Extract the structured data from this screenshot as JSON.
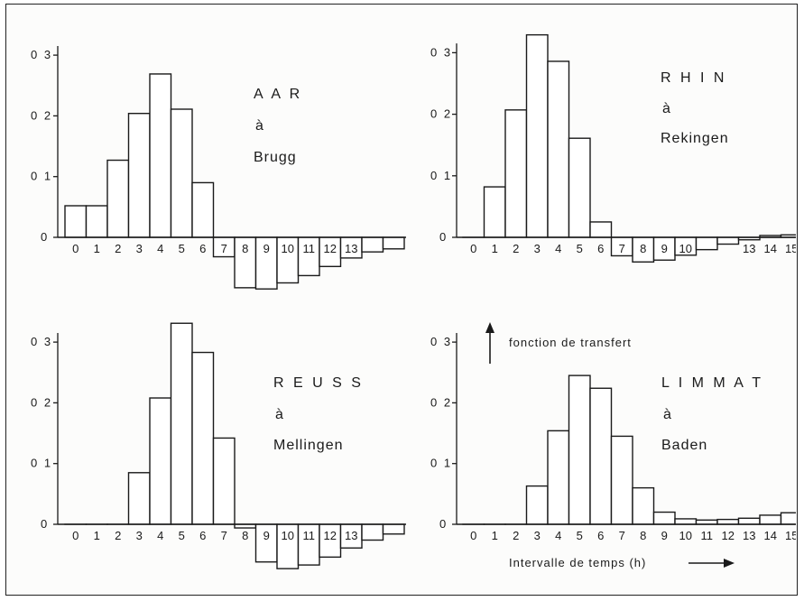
{
  "chart_data": [
    {
      "type": "bar",
      "title": "A A R",
      "subtitle": [
        "à",
        "Brugg"
      ],
      "xlabel": "",
      "ylabel": "",
      "categories": [
        "0",
        "1",
        "2",
        "3",
        "4",
        "5",
        "6",
        "7",
        "8",
        "9",
        "10",
        "11",
        "12",
        "13",
        "14",
        "15"
      ],
      "x_tick_labels": [
        "0",
        "1",
        "2",
        "3",
        "4",
        "5",
        "6",
        "7",
        "8",
        "9",
        "10",
        "11",
        "12",
        "13",
        "",
        ""
      ],
      "values": [
        0.052,
        0.052,
        0.127,
        0.204,
        0.269,
        0.211,
        0.09,
        -0.032,
        -0.083,
        -0.085,
        -0.075,
        -0.063,
        -0.048,
        -0.034,
        -0.024,
        -0.019
      ],
      "y_ticks": [
        "0",
        "0 1",
        "0 2",
        "0 3"
      ],
      "ylim": [
        -0.09,
        0.31
      ],
      "grid": false
    },
    {
      "type": "bar",
      "title": "R H I N",
      "subtitle": [
        "à",
        "Rekingen"
      ],
      "xlabel": "",
      "ylabel": "",
      "categories": [
        "0",
        "1",
        "2",
        "3",
        "4",
        "5",
        "6",
        "7",
        "8",
        "9",
        "10",
        "11",
        "12",
        "13",
        "14",
        "15"
      ],
      "x_tick_labels": [
        "0",
        "1",
        "2",
        "3",
        "4",
        "5",
        "6",
        "7",
        "8",
        "9",
        "10",
        "",
        "",
        "13",
        "14",
        "15"
      ],
      "values": [
        0.0,
        0.082,
        0.207,
        0.329,
        0.286,
        0.161,
        0.025,
        -0.03,
        -0.04,
        -0.037,
        -0.029,
        -0.02,
        -0.011,
        -0.004,
        0.003,
        0.004
      ],
      "y_ticks": [
        "0",
        "0 1",
        "0 2",
        "0 3"
      ],
      "ylim": [
        -0.05,
        0.34
      ],
      "grid": false
    },
    {
      "type": "bar",
      "title": "R E U S S",
      "subtitle": [
        "à",
        "Mellingen"
      ],
      "xlabel": "",
      "ylabel": "",
      "categories": [
        "0",
        "1",
        "2",
        "3",
        "4",
        "5",
        "6",
        "7",
        "8",
        "9",
        "10",
        "11",
        "12",
        "13",
        "14",
        "15"
      ],
      "x_tick_labels": [
        "0",
        "1",
        "2",
        "3",
        "4",
        "5",
        "6",
        "7",
        "8",
        "9",
        "10",
        "11",
        "12",
        "13",
        "",
        ""
      ],
      "values": [
        0.0,
        0.0,
        0.0,
        0.085,
        0.208,
        0.331,
        0.283,
        0.142,
        -0.006,
        -0.062,
        -0.073,
        -0.067,
        -0.054,
        -0.039,
        -0.026,
        -0.016
      ],
      "y_ticks": [
        "0",
        "0 1",
        "0 2",
        "0 3"
      ],
      "ylim": [
        -0.08,
        0.34
      ],
      "grid": false
    },
    {
      "type": "bar",
      "title": "L I M M A T",
      "subtitle": [
        "à",
        "Baden"
      ],
      "xlabel": "Intervalle de temps (h)",
      "ylabel": "fonction de transfert",
      "categories": [
        "0",
        "1",
        "2",
        "3",
        "4",
        "5",
        "6",
        "7",
        "8",
        "9",
        "10",
        "11",
        "12",
        "13",
        "14",
        "15"
      ],
      "x_tick_labels": [
        "0",
        "1",
        "2",
        "3",
        "4",
        "5",
        "6",
        "7",
        "8",
        "9",
        "10",
        "11",
        "12",
        "13",
        "14",
        "15"
      ],
      "values": [
        0.0,
        0.0,
        0.0,
        0.063,
        0.154,
        0.245,
        0.224,
        0.145,
        0.06,
        0.02,
        0.009,
        0.007,
        0.008,
        0.01,
        0.015,
        0.019
      ],
      "y_ticks": [
        "0",
        "0 1",
        "0 2",
        "0 3"
      ],
      "ylim": [
        -0.01,
        0.31
      ],
      "grid": false
    }
  ]
}
